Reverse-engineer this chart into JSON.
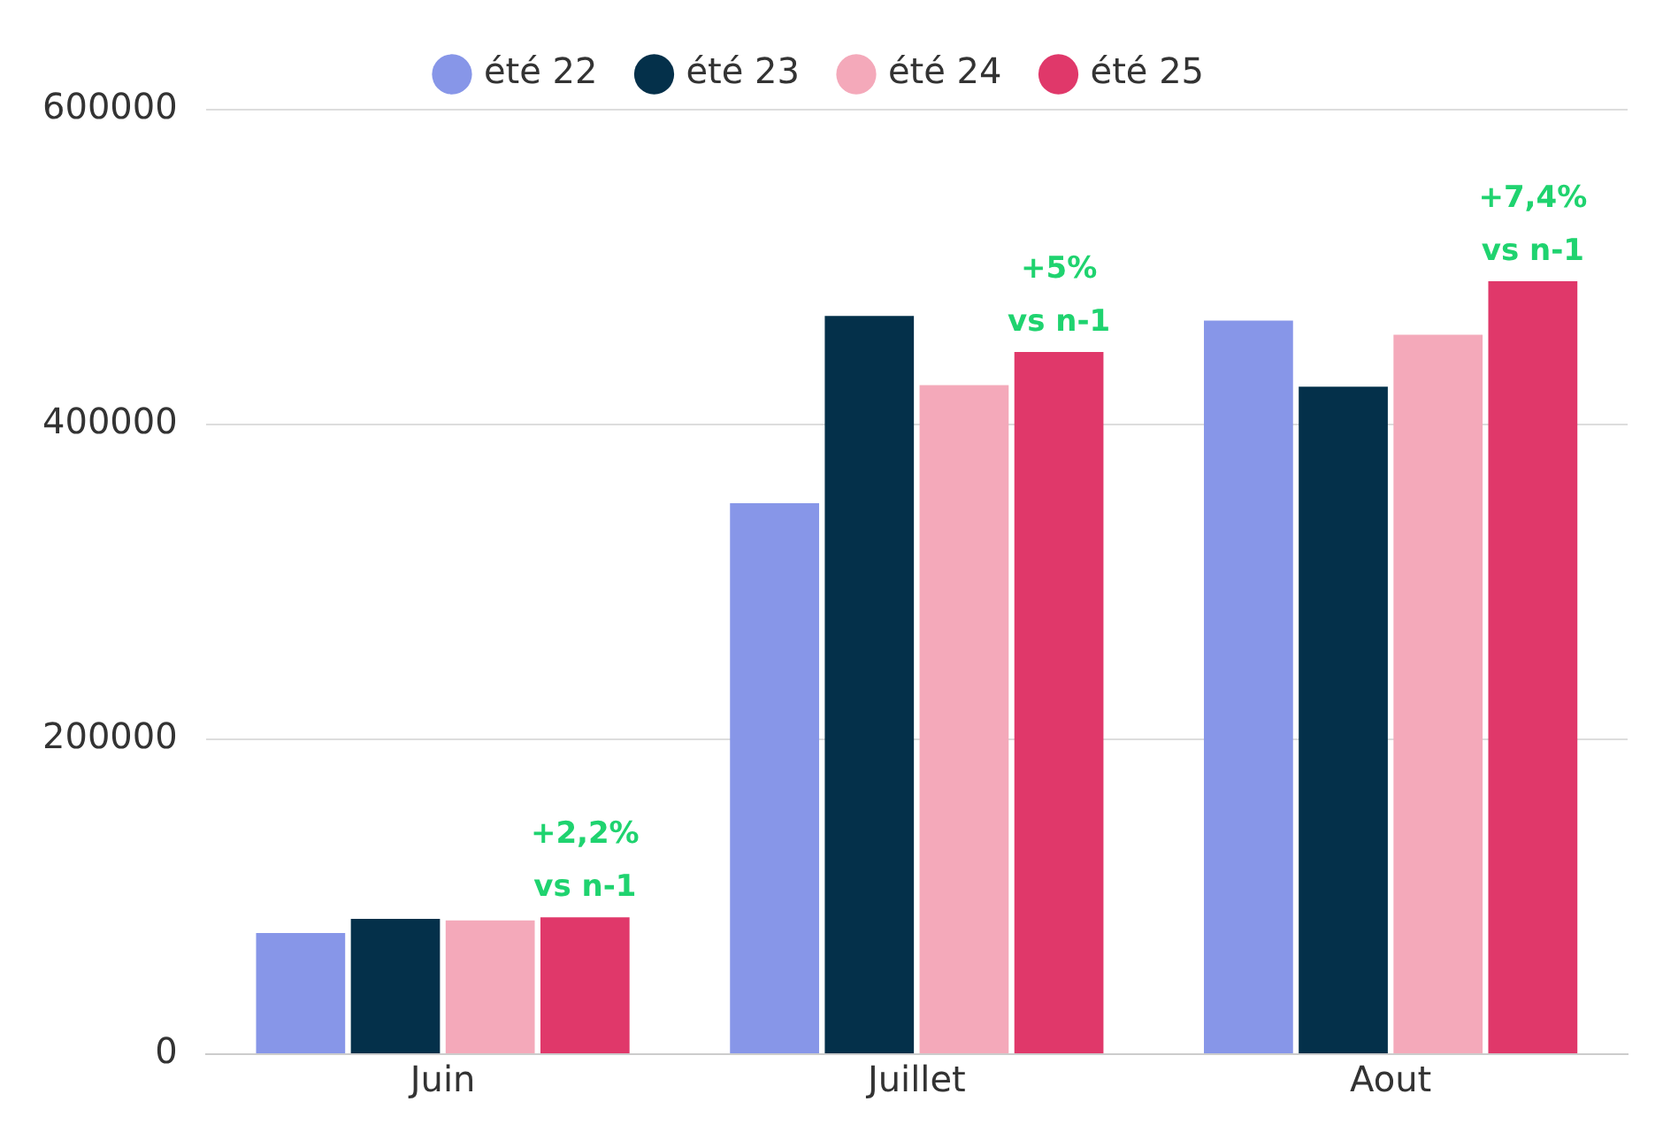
{
  "chart_data": {
    "type": "bar",
    "categories": [
      "Juin",
      "Juillet",
      "Aout"
    ],
    "series": [
      {
        "name": "été 22",
        "color": "#8796e8",
        "values": [
          77000,
          350000,
          466000
        ]
      },
      {
        "name": "été 23",
        "color": "#04304a",
        "values": [
          86000,
          469000,
          424000
        ]
      },
      {
        "name": "été 24",
        "color": "#f4a9ba",
        "values": [
          85000,
          425000,
          457000
        ]
      },
      {
        "name": "été 25",
        "color": "#e0386a",
        "values": [
          87000,
          446000,
          491000
        ]
      }
    ],
    "ylim": [
      0,
      600000
    ],
    "yticks": [
      0,
      200000,
      400000,
      600000
    ],
    "grid": "y",
    "legend": "top",
    "annotations": [
      "+2,2%\nvs n-1",
      "+5%\nvs n-1",
      "+7,4%\nvs n-1"
    ]
  }
}
